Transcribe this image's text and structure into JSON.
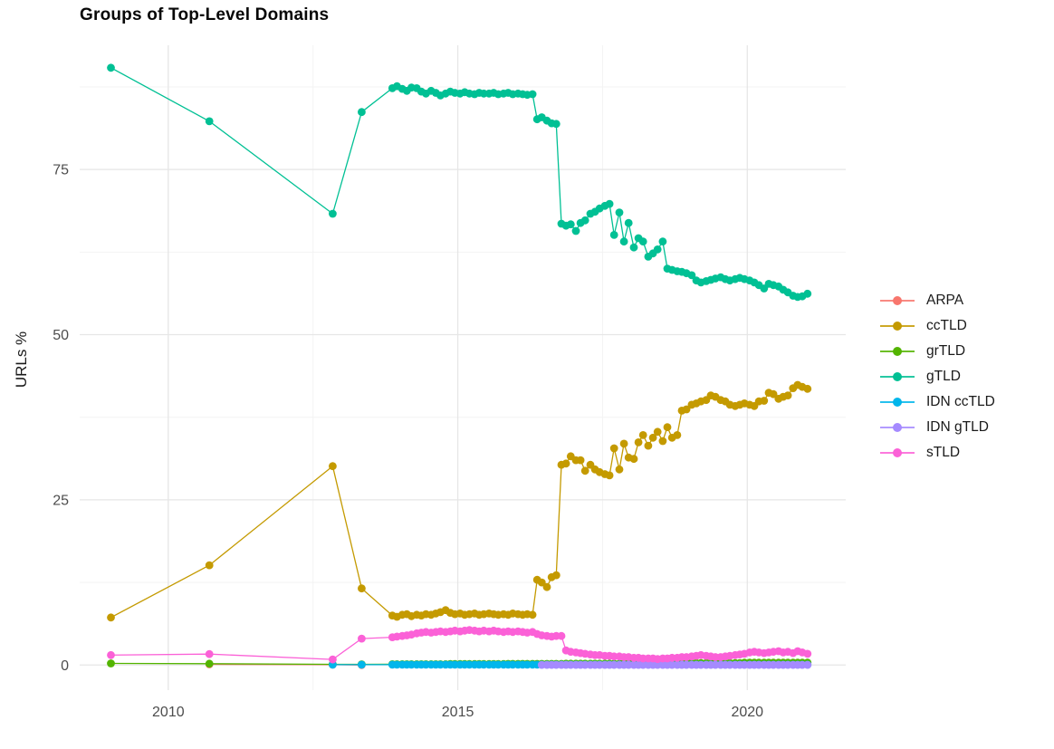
{
  "title": "Groups of Top-Level Domains",
  "x_axis": {
    "label": "",
    "tick_labels": [
      "2010",
      "2015",
      "2020"
    ],
    "tick_values": [
      2010,
      2015,
      2020
    ],
    "minor_values": [
      2012.5,
      2017.5
    ],
    "range": [
      2008.47,
      2021.7
    ],
    "text_color": "#4d4d4d"
  },
  "y_axis": {
    "label": "URLs %",
    "tick_labels": [
      "0",
      "25",
      "50",
      "75"
    ],
    "tick_values": [
      0,
      25,
      50,
      75
    ],
    "minor_values": [
      12.5,
      37.5,
      62.5,
      87.5
    ],
    "range": [
      -3.8,
      93.8
    ],
    "text_color": "#4d4d4d"
  },
  "grid": {
    "major_color": "#e6e6e6",
    "minor_color": "#f3f3f3",
    "background": "#ffffff"
  },
  "legend": {
    "position": "right",
    "items": [
      "ARPA",
      "ccTLD",
      "grTLD",
      "gTLD",
      "IDN ccTLD",
      "IDN gTLD",
      "sTLD"
    ]
  },
  "chart_data": {
    "type": "line",
    "title": "Groups of Top-Level Domains",
    "xlabel": "",
    "ylabel": "URLs %",
    "xlim": [
      2008.47,
      2021.7
    ],
    "ylim": [
      -3.8,
      93.8
    ],
    "grid": "on",
    "legend_position": "right",
    "months": [
      2013.87,
      2013.95,
      2014.04,
      2014.12,
      2014.2,
      2014.29,
      2014.37,
      2014.45,
      2014.54,
      2014.62,
      2014.7,
      2014.79,
      2014.87,
      2014.95,
      2015.04,
      2015.12,
      2015.2,
      2015.29,
      2015.37,
      2015.45,
      2015.54,
      2015.62,
      2015.7,
      2015.79,
      2015.87,
      2015.95,
      2016.04,
      2016.12,
      2016.2,
      2016.29,
      2016.37,
      2016.45,
      2016.54,
      2016.62,
      2016.7,
      2016.79,
      2016.87,
      2016.95,
      2017.04,
      2017.12,
      2017.2,
      2017.29,
      2017.37,
      2017.45,
      2017.54,
      2017.62,
      2017.7,
      2017.79,
      2017.87,
      2017.95,
      2018.04,
      2018.12,
      2018.2,
      2018.29,
      2018.37,
      2018.45,
      2018.54,
      2018.62,
      2018.7,
      2018.79,
      2018.87,
      2018.95,
      2019.04,
      2019.12,
      2019.2,
      2019.29,
      2019.37,
      2019.45,
      2019.54,
      2019.62,
      2019.7,
      2019.79,
      2019.87,
      2019.95,
      2020.04,
      2020.12,
      2020.2,
      2020.29,
      2020.37,
      2020.45,
      2020.54,
      2020.62,
      2020.7,
      2020.79,
      2020.87,
      2020.95,
      2021.04
    ],
    "series": [
      {
        "name": "ARPA",
        "color": "#F8766D",
        "early": [
          [
            2010.71,
            0.1
          ],
          [
            2012.84,
            0.05
          ],
          [
            2013.34,
            0.0
          ]
        ],
        "values": null
      },
      {
        "name": "ccTLD",
        "color": "#C49A00",
        "early": [
          [
            2009.01,
            7.2
          ],
          [
            2010.71,
            15.1
          ],
          [
            2012.84,
            30.1
          ],
          [
            2013.34,
            11.6
          ]
        ],
        "values": [
          7.5,
          7.3,
          7.6,
          7.7,
          7.4,
          7.6,
          7.5,
          7.7,
          7.6,
          7.8,
          8.0,
          8.3,
          7.9,
          7.7,
          7.8,
          7.6,
          7.7,
          7.8,
          7.6,
          7.7,
          7.8,
          7.7,
          7.6,
          7.7,
          7.6,
          7.8,
          7.7,
          7.6,
          7.7,
          7.6,
          12.9,
          12.5,
          11.8,
          13.3,
          13.6,
          30.3,
          30.5,
          31.6,
          31.0,
          31.0,
          29.4,
          30.3,
          29.6,
          29.2,
          28.9,
          28.7,
          32.8,
          29.6,
          33.5,
          31.4,
          31.2,
          33.7,
          34.8,
          33.2,
          34.4,
          35.3,
          33.9,
          36.0,
          34.4,
          34.8,
          38.5,
          38.7,
          39.4,
          39.6,
          39.9,
          40.1,
          40.8,
          40.6,
          40.1,
          39.9,
          39.4,
          39.2,
          39.4,
          39.6,
          39.4,
          39.2,
          39.9,
          40.0,
          41.2,
          41.0,
          40.3,
          40.6,
          40.8,
          41.9,
          42.4,
          42.1,
          41.8
        ]
      },
      {
        "name": "grTLD",
        "color": "#53B400",
        "early": [
          [
            2009.01,
            0.25
          ],
          [
            2010.71,
            0.2
          ],
          [
            2012.84,
            0.1
          ],
          [
            2013.34,
            0.1
          ]
        ],
        "values": [
          0.12,
          0.12,
          0.12,
          0.12,
          0.12,
          0.12,
          0.12,
          0.12,
          0.12,
          0.12,
          0.12,
          0.12,
          0.15,
          0.15,
          0.15,
          0.15,
          0.15,
          0.15,
          0.15,
          0.15,
          0.15,
          0.15,
          0.15,
          0.15,
          0.18,
          0.18,
          0.18,
          0.18,
          0.18,
          0.18,
          0.18,
          0.18,
          0.18,
          0.18,
          0.18,
          0.18,
          0.2,
          0.2,
          0.2,
          0.2,
          0.2,
          0.2,
          0.2,
          0.2,
          0.2,
          0.2,
          0.2,
          0.2,
          0.25,
          0.25,
          0.25,
          0.25,
          0.25,
          0.25,
          0.25,
          0.25,
          0.25,
          0.25,
          0.25,
          0.25,
          0.3,
          0.3,
          0.3,
          0.3,
          0.3,
          0.3,
          0.3,
          0.3,
          0.3,
          0.3,
          0.3,
          0.3,
          0.3,
          0.35,
          0.35,
          0.35,
          0.35,
          0.35,
          0.35,
          0.35,
          0.35,
          0.35,
          0.35,
          0.35,
          0.35,
          0.35,
          0.35
        ]
      },
      {
        "name": "gTLD",
        "color": "#00C094",
        "early": [
          [
            2009.01,
            90.4
          ],
          [
            2010.71,
            82.3
          ],
          [
            2012.84,
            68.3
          ],
          [
            2013.34,
            83.7
          ]
        ],
        "values": [
          87.3,
          87.6,
          87.2,
          86.9,
          87.4,
          87.3,
          86.8,
          86.5,
          86.9,
          86.6,
          86.2,
          86.5,
          86.8,
          86.6,
          86.5,
          86.7,
          86.5,
          86.4,
          86.6,
          86.5,
          86.5,
          86.6,
          86.4,
          86.5,
          86.6,
          86.4,
          86.5,
          86.4,
          86.3,
          86.4,
          82.6,
          82.9,
          82.4,
          82.0,
          81.9,
          66.8,
          66.5,
          66.7,
          65.7,
          66.9,
          67.3,
          68.3,
          68.6,
          69.1,
          69.5,
          69.8,
          65.1,
          68.5,
          64.1,
          66.9,
          63.2,
          64.6,
          64.1,
          61.8,
          62.3,
          62.9,
          64.1,
          60.0,
          59.8,
          59.6,
          59.5,
          59.3,
          59.0,
          58.2,
          57.9,
          58.1,
          58.3,
          58.5,
          58.7,
          58.4,
          58.2,
          58.4,
          58.6,
          58.4,
          58.2,
          57.9,
          57.5,
          57.0,
          57.7,
          57.5,
          57.3,
          56.8,
          56.4,
          55.9,
          55.7,
          55.8,
          56.2
        ]
      },
      {
        "name": "IDN ccTLD",
        "color": "#00B6EB",
        "early": [
          [
            2012.84,
            0.05
          ],
          [
            2013.34,
            0.05
          ]
        ],
        "values": [
          0.05,
          0.05,
          0.05,
          0.05,
          0.05,
          0.05,
          0.05,
          0.05,
          0.05,
          0.05,
          0.05,
          0.05,
          0.05,
          0.05,
          0.05,
          0.05,
          0.05,
          0.05,
          0.05,
          0.05,
          0.05,
          0.05,
          0.05,
          0.05,
          0.05,
          0.05,
          0.05,
          0.05,
          0.05,
          0.05,
          0.05,
          0.05,
          0.05,
          0.05,
          0.05,
          0.05,
          0.05,
          0.05,
          0.05,
          0.05,
          0.05,
          0.05,
          0.05,
          0.05,
          0.05,
          0.05,
          0.05,
          0.05,
          0.05,
          0.05,
          0.05,
          0.05,
          0.05,
          0.05,
          0.05,
          0.05,
          0.05,
          0.05,
          0.05,
          0.05,
          0.05,
          0.05,
          0.05,
          0.05,
          0.05,
          0.05,
          0.05,
          0.05,
          0.05,
          0.05,
          0.05,
          0.05,
          0.05,
          0.05,
          0.05,
          0.05,
          0.05,
          0.05,
          0.05,
          0.05,
          0.05,
          0.05,
          0.05,
          0.05,
          0.05,
          0.05,
          0.05
        ]
      },
      {
        "name": "IDN gTLD",
        "color": "#A58AFF",
        "early": [],
        "values": [
          null,
          null,
          null,
          null,
          null,
          null,
          null,
          null,
          null,
          null,
          null,
          null,
          null,
          null,
          null,
          null,
          null,
          null,
          null,
          null,
          null,
          null,
          null,
          null,
          null,
          null,
          null,
          null,
          null,
          null,
          null,
          0.02,
          0.02,
          0.02,
          0.02,
          0.02,
          0.02,
          0.02,
          0.02,
          0.02,
          0.02,
          0.02,
          0.02,
          0.02,
          0.02,
          0.02,
          0.02,
          0.02,
          0.02,
          0.02,
          0.02,
          0.02,
          0.02,
          0.02,
          0.02,
          0.02,
          0.02,
          0.02,
          0.02,
          0.02,
          0.02,
          0.02,
          0.02,
          0.02,
          0.02,
          0.02,
          0.02,
          0.02,
          0.02,
          0.02,
          0.02,
          0.02,
          0.02,
          0.02,
          0.02,
          0.02,
          0.02,
          0.02,
          0.02,
          0.02,
          0.02,
          0.02,
          0.02,
          0.02,
          0.02,
          0.02,
          0.02
        ]
      },
      {
        "name": "sTLD",
        "color": "#FB61D7",
        "early": [
          [
            2009.01,
            1.5
          ],
          [
            2010.71,
            1.65
          ],
          [
            2012.84,
            0.85
          ],
          [
            2013.34,
            4.0
          ]
        ],
        "values": [
          4.2,
          4.3,
          4.4,
          4.5,
          4.6,
          4.8,
          4.9,
          5.0,
          4.9,
          5.0,
          5.1,
          5.0,
          5.1,
          5.2,
          5.1,
          5.2,
          5.3,
          5.2,
          5.1,
          5.2,
          5.1,
          5.2,
          5.1,
          5.0,
          5.1,
          5.0,
          5.1,
          5.0,
          4.9,
          5.0,
          4.7,
          4.5,
          4.4,
          4.3,
          4.4,
          4.4,
          2.2,
          2.0,
          1.9,
          1.8,
          1.7,
          1.6,
          1.5,
          1.5,
          1.4,
          1.4,
          1.3,
          1.3,
          1.2,
          1.2,
          1.1,
          1.1,
          1.0,
          1.0,
          1.0,
          0.9,
          1.0,
          1.0,
          1.1,
          1.1,
          1.2,
          1.2,
          1.3,
          1.4,
          1.5,
          1.4,
          1.3,
          1.2,
          1.2,
          1.3,
          1.4,
          1.5,
          1.6,
          1.7,
          1.9,
          2.0,
          1.9,
          1.8,
          1.9,
          2.0,
          2.1,
          1.9,
          2.0,
          1.8,
          2.1,
          1.9,
          1.7
        ]
      }
    ]
  }
}
